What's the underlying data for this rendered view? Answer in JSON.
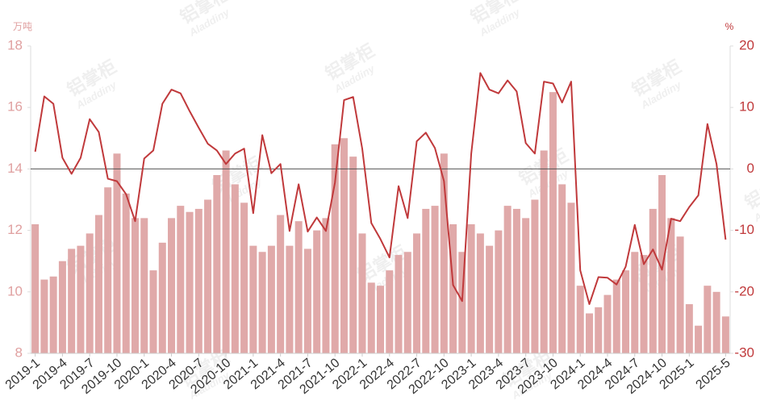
{
  "chart_data": {
    "type": "bar-line",
    "y_label": "万吨",
    "y2_label": "%",
    "watermark": "铝掌柜",
    "watermark_sub": "Aladdiny",
    "categories": [
      "2019-1",
      null,
      null,
      "2019-4",
      null,
      null,
      "2019-7",
      null,
      null,
      "2019-10",
      null,
      null,
      "2020-1",
      null,
      null,
      "2020-4",
      null,
      null,
      "2020-7",
      null,
      null,
      "2020-10",
      null,
      null,
      "2021-1",
      null,
      null,
      "2021-4",
      null,
      null,
      "2021-7",
      null,
      null,
      "2021-10",
      null,
      null,
      "2022-1",
      null,
      null,
      "2022-4",
      null,
      null,
      "2022-7",
      null,
      null,
      "2022-10",
      null,
      null,
      "2023-1",
      null,
      null,
      "2023-4",
      null,
      null,
      "2023-7",
      null,
      null,
      "2023-10",
      null,
      null,
      "2024-1",
      null,
      null,
      "2024-4",
      null,
      null,
      "2024-7",
      null,
      null,
      "2024-10",
      null,
      null,
      "2025-1",
      null,
      null,
      null,
      "2025-5"
    ],
    "series": [
      {
        "type": "bar",
        "color": "#e0a9a9",
        "values": [
          12.2,
          10.4,
          10.5,
          11.0,
          11.4,
          11.5,
          11.9,
          12.5,
          13.4,
          14.5,
          13.2,
          12.4,
          12.4,
          10.7,
          11.6,
          12.4,
          12.8,
          12.6,
          12.7,
          13.0,
          13.8,
          14.6,
          13.5,
          12.9,
          11.5,
          11.3,
          11.5,
          12.5,
          11.5,
          12.3,
          11.4,
          12.0,
          12.4,
          14.8,
          15.0,
          14.4,
          11.9,
          10.3,
          10.2,
          10.7,
          11.2,
          11.3,
          11.9,
          12.7,
          12.8,
          14.5,
          12.2,
          11.3,
          12.2,
          11.9,
          11.5,
          12.0,
          12.8,
          12.7,
          12.4,
          13.0,
          14.6,
          16.5,
          13.5,
          12.9,
          10.2,
          9.3,
          9.5,
          9.9,
          10.4,
          10.7,
          11.3,
          11.2,
          12.7,
          13.8,
          12.4,
          11.8,
          9.6,
          8.9,
          10.2,
          10.0,
          9.2
        ]
      },
      {
        "type": "line",
        "axis": "y2",
        "color": "#c0393b",
        "values": [
          2.8,
          11.8,
          10.6,
          1.8,
          -0.8,
          1.8,
          8.1,
          6.0,
          -1.6,
          -2.0,
          -4.1,
          -8.5,
          1.7,
          3.0,
          10.6,
          12.9,
          12.3,
          9.4,
          6.7,
          4.1,
          3.0,
          0.8,
          2.5,
          3.3,
          -7.2,
          5.5,
          -0.7,
          0.8,
          -10.1,
          -2.5,
          -10.2,
          -7.9,
          -10.1,
          -2.2,
          11.2,
          11.7,
          3.3,
          -8.8,
          -11.4,
          -14.4,
          -2.8,
          -8.0,
          4.5,
          5.9,
          3.4,
          -2.0,
          -18.9,
          -21.5,
          2.5,
          15.6,
          12.9,
          12.3,
          14.4,
          12.6,
          4.2,
          2.5,
          14.2,
          13.9,
          10.8,
          14.2,
          -16.5,
          -22.0,
          -17.6,
          -17.7,
          -18.8,
          -15.9,
          -9.1,
          -15.5,
          -13.1,
          -16.4,
          -8.1,
          -8.5,
          -6.2,
          -4.3,
          7.3,
          0.8,
          -11.5
        ]
      }
    ],
    "ylim": [
      8,
      18
    ],
    "yticks": [
      8,
      10,
      12,
      14,
      16,
      18
    ],
    "y2lim": [
      -30,
      20
    ],
    "y2ticks": [
      -30,
      -20,
      -10,
      0,
      10,
      20
    ],
    "left_axis_color": "#e0a0a0",
    "right_axis_color": "#c0393b"
  }
}
